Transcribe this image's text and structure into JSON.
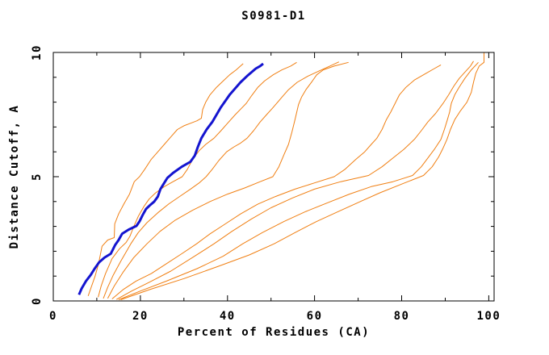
{
  "window": {
    "background": "#ffffff"
  },
  "chart_data": {
    "type": "line",
    "title": "S0981-D1",
    "xlabel": "Percent of Residues (CA)",
    "ylabel": "Distance Cutoff, A",
    "xlim": [
      0,
      100
    ],
    "ylim": [
      0,
      10
    ],
    "x_ticks": [
      0,
      20,
      40,
      60,
      80,
      100
    ],
    "x_minor_ticks": [
      10,
      30,
      50,
      70,
      90
    ],
    "y_ticks": [
      0,
      5,
      10
    ],
    "y_minor_ticks": [
      1,
      2,
      3,
      4,
      6,
      7,
      8,
      9
    ],
    "grid": false,
    "legend": "none",
    "frame_color": "#000000",
    "background_color": "#ffffff",
    "series": [
      {
        "name": "orange-model-1",
        "color": "#f07f12",
        "width": 1,
        "points": [
          [
            8.0,
            0.2
          ],
          [
            8.8,
            0.6
          ],
          [
            9.6,
            1.0
          ],
          [
            10.4,
            1.5
          ],
          [
            11.2,
            2.2
          ],
          [
            12.5,
            2.45
          ],
          [
            14.0,
            2.55
          ],
          [
            14.1,
            3.1
          ],
          [
            15.0,
            3.5
          ],
          [
            16.2,
            3.9
          ],
          [
            17.5,
            4.3
          ],
          [
            18.6,
            4.8
          ],
          [
            19.8,
            5.0
          ],
          [
            21.0,
            5.3
          ],
          [
            22.5,
            5.7
          ],
          [
            24.0,
            6.0
          ],
          [
            25.5,
            6.3
          ],
          [
            27.0,
            6.6
          ],
          [
            28.5,
            6.9
          ],
          [
            30.0,
            7.05
          ],
          [
            31.5,
            7.15
          ],
          [
            33.0,
            7.25
          ],
          [
            34.0,
            7.35
          ],
          [
            34.3,
            7.7
          ],
          [
            35.0,
            8.0
          ],
          [
            36.0,
            8.3
          ],
          [
            37.5,
            8.6
          ],
          [
            39.0,
            8.85
          ],
          [
            40.5,
            9.1
          ],
          [
            42.0,
            9.3
          ],
          [
            43.6,
            9.55
          ]
        ]
      },
      {
        "name": "orange-model-2",
        "color": "#f07f12",
        "width": 1,
        "points": [
          [
            10.3,
            0.15
          ],
          [
            11.0,
            0.6
          ],
          [
            12.0,
            1.1
          ],
          [
            13.5,
            1.7
          ],
          [
            15.2,
            2.1
          ],
          [
            16.7,
            2.35
          ],
          [
            17.6,
            2.6
          ],
          [
            18.5,
            3.0
          ],
          [
            19.5,
            3.4
          ],
          [
            20.8,
            3.8
          ],
          [
            22.0,
            4.1
          ],
          [
            23.5,
            4.35
          ],
          [
            25.5,
            4.6
          ],
          [
            27.5,
            4.8
          ],
          [
            29.6,
            5.0
          ],
          [
            30.8,
            5.3
          ],
          [
            32.0,
            5.7
          ],
          [
            33.5,
            6.05
          ],
          [
            35.0,
            6.3
          ],
          [
            36.9,
            6.55
          ],
          [
            38.5,
            6.85
          ],
          [
            40.0,
            7.15
          ],
          [
            41.8,
            7.5
          ],
          [
            43.2,
            7.75
          ],
          [
            44.3,
            7.95
          ],
          [
            45.5,
            8.25
          ],
          [
            47.0,
            8.6
          ],
          [
            48.5,
            8.85
          ],
          [
            50.5,
            9.1
          ],
          [
            52.5,
            9.3
          ],
          [
            54.5,
            9.45
          ],
          [
            55.9,
            9.6
          ]
        ]
      },
      {
        "name": "orange-model-3",
        "color": "#f07f12",
        "width": 1,
        "points": [
          [
            11.5,
            0.1
          ],
          [
            12.5,
            0.55
          ],
          [
            13.8,
            1.05
          ],
          [
            15.5,
            1.6
          ],
          [
            17.8,
            2.3
          ],
          [
            19.5,
            2.75
          ],
          [
            21.5,
            3.15
          ],
          [
            24.0,
            3.55
          ],
          [
            26.5,
            3.9
          ],
          [
            29.0,
            4.2
          ],
          [
            31.5,
            4.5
          ],
          [
            33.5,
            4.75
          ],
          [
            35.1,
            5.0
          ],
          [
            36.5,
            5.3
          ],
          [
            38.0,
            5.65
          ],
          [
            39.8,
            6.0
          ],
          [
            41.5,
            6.2
          ],
          [
            43.0,
            6.35
          ],
          [
            44.5,
            6.55
          ],
          [
            46.0,
            6.85
          ],
          [
            47.5,
            7.2
          ],
          [
            49.0,
            7.5
          ],
          [
            50.3,
            7.75
          ],
          [
            51.3,
            7.95
          ],
          [
            52.5,
            8.2
          ],
          [
            54.0,
            8.5
          ],
          [
            56.0,
            8.8
          ],
          [
            58.5,
            9.05
          ],
          [
            61.0,
            9.25
          ],
          [
            63.5,
            9.45
          ],
          [
            65.6,
            9.62
          ]
        ]
      },
      {
        "name": "orange-model-4",
        "color": "#f07f12",
        "width": 1,
        "points": [
          [
            12.5,
            0.1
          ],
          [
            14.0,
            0.6
          ],
          [
            16.0,
            1.15
          ],
          [
            18.5,
            1.75
          ],
          [
            21.5,
            2.3
          ],
          [
            24.5,
            2.8
          ],
          [
            28.0,
            3.25
          ],
          [
            32.0,
            3.65
          ],
          [
            36.0,
            4.0
          ],
          [
            40.0,
            4.3
          ],
          [
            44.0,
            4.55
          ],
          [
            47.5,
            4.8
          ],
          [
            50.4,
            5.0
          ],
          [
            51.8,
            5.4
          ],
          [
            53.0,
            5.9
          ],
          [
            54.0,
            6.3
          ],
          [
            54.8,
            6.8
          ],
          [
            55.5,
            7.3
          ],
          [
            56.3,
            7.9
          ],
          [
            57.0,
            8.2
          ],
          [
            58.0,
            8.5
          ],
          [
            59.5,
            8.85
          ],
          [
            60.5,
            9.1
          ],
          [
            62.0,
            9.3
          ],
          [
            64.5,
            9.45
          ],
          [
            67.8,
            9.6
          ]
        ]
      },
      {
        "name": "orange-model-5",
        "color": "#f07f12",
        "width": 1,
        "points": [
          [
            13.5,
            0.08
          ],
          [
            16.0,
            0.45
          ],
          [
            19.0,
            0.8
          ],
          [
            22.5,
            1.1
          ],
          [
            26.0,
            1.5
          ],
          [
            29.5,
            1.9
          ],
          [
            32.9,
            2.3
          ],
          [
            36.0,
            2.7
          ],
          [
            39.5,
            3.1
          ],
          [
            43.0,
            3.5
          ],
          [
            47.0,
            3.9
          ],
          [
            51.0,
            4.2
          ],
          [
            55.5,
            4.5
          ],
          [
            60.0,
            4.75
          ],
          [
            64.5,
            5.0
          ],
          [
            67.0,
            5.3
          ],
          [
            69.5,
            5.7
          ],
          [
            71.5,
            6.0
          ],
          [
            73.0,
            6.3
          ],
          [
            74.3,
            6.55
          ],
          [
            75.5,
            6.9
          ],
          [
            76.5,
            7.3
          ],
          [
            77.5,
            7.6
          ],
          [
            78.5,
            7.95
          ],
          [
            79.5,
            8.3
          ],
          [
            81.0,
            8.6
          ],
          [
            83.0,
            8.9
          ],
          [
            85.5,
            9.15
          ],
          [
            87.5,
            9.35
          ],
          [
            89.0,
            9.5
          ]
        ]
      },
      {
        "name": "orange-model-6",
        "color": "#f07f12",
        "width": 1,
        "points": [
          [
            14.5,
            0.06
          ],
          [
            18.0,
            0.4
          ],
          [
            22.0,
            0.75
          ],
          [
            27.0,
            1.2
          ],
          [
            32.0,
            1.75
          ],
          [
            36.9,
            2.3
          ],
          [
            41.0,
            2.8
          ],
          [
            45.5,
            3.3
          ],
          [
            50.0,
            3.75
          ],
          [
            55.0,
            4.15
          ],
          [
            60.0,
            4.5
          ],
          [
            66.0,
            4.8
          ],
          [
            72.4,
            5.05
          ],
          [
            75.5,
            5.4
          ],
          [
            78.0,
            5.75
          ],
          [
            80.5,
            6.1
          ],
          [
            82.9,
            6.5
          ],
          [
            84.5,
            6.85
          ],
          [
            86.0,
            7.2
          ],
          [
            87.8,
            7.55
          ],
          [
            89.5,
            7.95
          ],
          [
            90.8,
            8.3
          ],
          [
            92.0,
            8.65
          ],
          [
            93.2,
            8.95
          ],
          [
            94.5,
            9.2
          ],
          [
            95.8,
            9.45
          ],
          [
            96.5,
            9.65
          ]
        ]
      },
      {
        "name": "orange-model-7",
        "color": "#f07f12",
        "width": 1,
        "points": [
          [
            15.0,
            0.05
          ],
          [
            20.0,
            0.4
          ],
          [
            26.0,
            0.8
          ],
          [
            33.0,
            1.3
          ],
          [
            39.0,
            1.8
          ],
          [
            43.5,
            2.3
          ],
          [
            48.0,
            2.75
          ],
          [
            53.0,
            3.2
          ],
          [
            58.0,
            3.6
          ],
          [
            63.0,
            3.95
          ],
          [
            68.0,
            4.3
          ],
          [
            73.0,
            4.6
          ],
          [
            78.0,
            4.8
          ],
          [
            82.5,
            5.05
          ],
          [
            84.5,
            5.4
          ],
          [
            86.0,
            5.75
          ],
          [
            87.5,
            6.1
          ],
          [
            89.0,
            6.5
          ],
          [
            89.8,
            6.9
          ],
          [
            90.5,
            7.3
          ],
          [
            91.0,
            7.6
          ],
          [
            91.4,
            7.95
          ],
          [
            92.2,
            8.3
          ],
          [
            93.2,
            8.6
          ],
          [
            94.5,
            8.95
          ],
          [
            96.0,
            9.3
          ],
          [
            97.6,
            9.6
          ]
        ]
      },
      {
        "name": "orange-model-8",
        "color": "#f07f12",
        "width": 1,
        "points": [
          [
            15.5,
            0.05
          ],
          [
            22.0,
            0.45
          ],
          [
            30.0,
            0.9
          ],
          [
            38.0,
            1.4
          ],
          [
            45.0,
            1.85
          ],
          [
            50.7,
            2.3
          ],
          [
            55.5,
            2.75
          ],
          [
            60.5,
            3.2
          ],
          [
            65.5,
            3.6
          ],
          [
            70.5,
            4.0
          ],
          [
            75.0,
            4.35
          ],
          [
            80.0,
            4.7
          ],
          [
            85.0,
            5.05
          ],
          [
            87.0,
            5.4
          ],
          [
            88.5,
            5.8
          ],
          [
            89.5,
            6.15
          ],
          [
            90.4,
            6.5
          ],
          [
            91.2,
            6.9
          ],
          [
            92.2,
            7.3
          ],
          [
            93.5,
            7.65
          ],
          [
            95.0,
            8.0
          ],
          [
            96.0,
            8.4
          ],
          [
            96.5,
            8.8
          ],
          [
            97.0,
            9.15
          ],
          [
            97.8,
            9.45
          ],
          [
            98.9,
            9.6
          ],
          [
            98.9,
            10.0
          ]
        ]
      },
      {
        "name": "blue-highlighted-model",
        "color": "#1414cf",
        "width": 3,
        "points": [
          [
            5.9,
            0.25
          ],
          [
            6.5,
            0.5
          ],
          [
            7.5,
            0.8
          ],
          [
            8.6,
            1.05
          ],
          [
            9.5,
            1.3
          ],
          [
            10.5,
            1.55
          ],
          [
            11.8,
            1.75
          ],
          [
            13.2,
            1.9
          ],
          [
            14.2,
            2.25
          ],
          [
            15.0,
            2.45
          ],
          [
            15.8,
            2.7
          ],
          [
            17.3,
            2.87
          ],
          [
            19.1,
            3.02
          ],
          [
            19.8,
            3.2
          ],
          [
            20.5,
            3.45
          ],
          [
            21.3,
            3.7
          ],
          [
            22.2,
            3.85
          ],
          [
            23.2,
            4.0
          ],
          [
            24.0,
            4.2
          ],
          [
            24.6,
            4.5
          ],
          [
            25.3,
            4.7
          ],
          [
            26.2,
            4.95
          ],
          [
            27.5,
            5.15
          ],
          [
            29.5,
            5.4
          ],
          [
            31.5,
            5.6
          ],
          [
            32.5,
            5.85
          ],
          [
            33.2,
            6.2
          ],
          [
            34.0,
            6.55
          ],
          [
            35.2,
            6.9
          ],
          [
            36.5,
            7.2
          ],
          [
            37.5,
            7.5
          ],
          [
            38.5,
            7.8
          ],
          [
            39.5,
            8.05
          ],
          [
            40.5,
            8.3
          ],
          [
            41.5,
            8.5
          ],
          [
            43.0,
            8.8
          ],
          [
            44.5,
            9.05
          ],
          [
            45.5,
            9.2
          ],
          [
            46.5,
            9.35
          ],
          [
            47.5,
            9.45
          ],
          [
            48.2,
            9.55
          ]
        ]
      }
    ]
  }
}
